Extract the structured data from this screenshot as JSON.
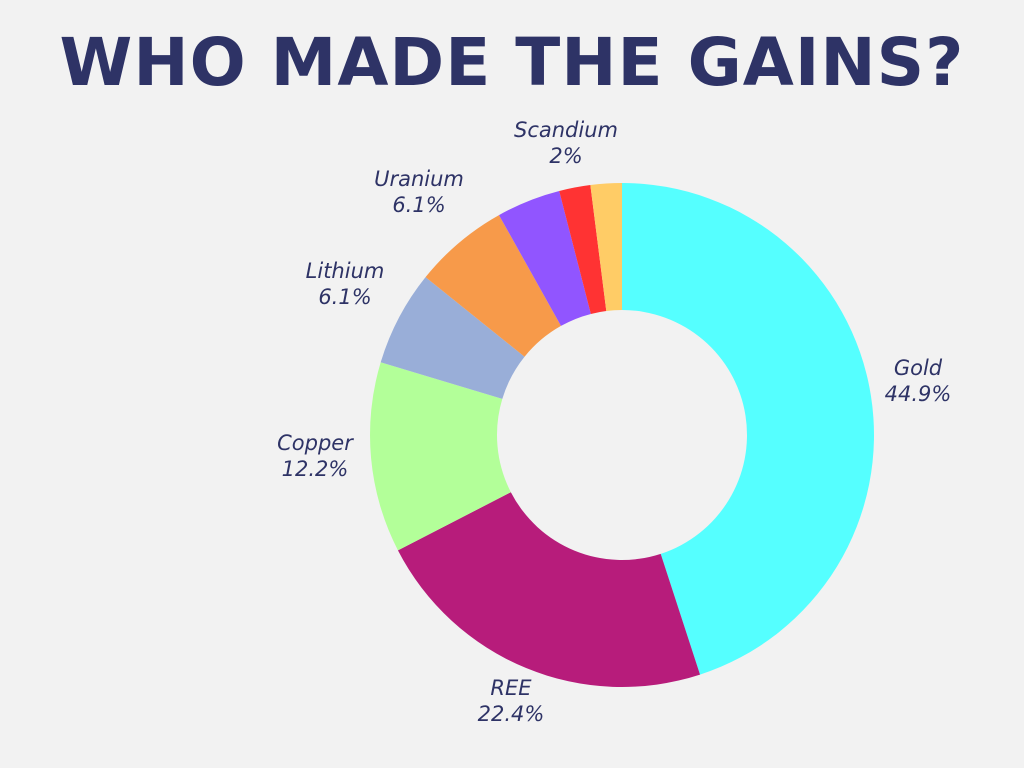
{
  "chart_data": {
    "type": "pie",
    "title": "WHO MADE THE GAINS?",
    "slices": [
      {
        "label": "Gold",
        "value_text": "44.9%",
        "value": 44.9,
        "color": "#55ffff"
      },
      {
        "label": "REE",
        "value_text": "22.4%",
        "value": 22.4,
        "color": "#b71c7b"
      },
      {
        "label": "Copper",
        "value_text": "12.2%",
        "value": 12.2,
        "color": "#b3ff99"
      },
      {
        "label": "Lithium",
        "value_text": "6.1%",
        "value": 6.1,
        "color": "#99aed8"
      },
      {
        "label": "Uranium",
        "value_text": "6.1%",
        "value": 6.1,
        "color": "#f79a4a"
      },
      {
        "label": "",
        "value_text": "",
        "value": 4.1,
        "color": "#9155ff"
      },
      {
        "label": "",
        "value_text": "",
        "value": 2.0,
        "color": "#ff3333"
      },
      {
        "label": "Scandium",
        "value_text": "2%",
        "value": 2.0,
        "color": "#ffcc66"
      }
    ],
    "donut": true,
    "legend": "none"
  }
}
